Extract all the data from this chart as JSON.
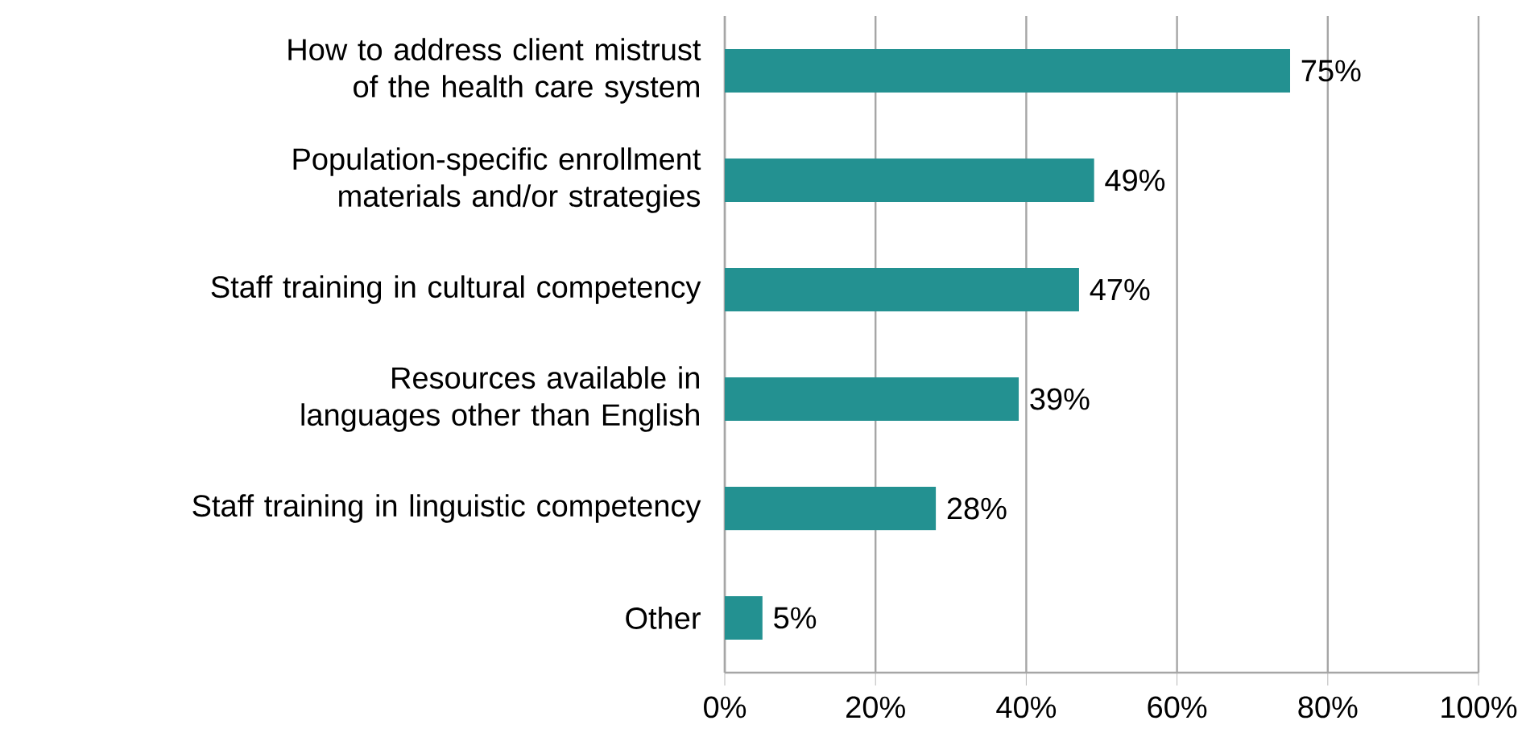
{
  "chart_data": {
    "type": "bar",
    "orientation": "horizontal",
    "categories": [
      "How to address client mistrust of the health care system",
      "Population-specific enrollment materials and/or strategies",
      "Staff training in cultural competency",
      "Resources available in languages other than English",
      "Staff training in linguistic competency",
      "Other"
    ],
    "values": [
      75,
      49,
      47,
      39,
      28,
      5
    ],
    "value_labels": [
      "75%",
      "49%",
      "47%",
      "39%",
      "28%",
      "5%"
    ],
    "color": "#239191",
    "xlim": [
      0,
      100
    ],
    "xticks": [
      {
        "value": 0,
        "label": "0%"
      },
      {
        "value": 20,
        "label": "20%"
      },
      {
        "value": 40,
        "label": "40%"
      },
      {
        "value": 60,
        "label": "60%"
      },
      {
        "value": 80,
        "label": "80%"
      },
      {
        "value": 100,
        "label": "100%"
      }
    ],
    "grid": "x"
  }
}
